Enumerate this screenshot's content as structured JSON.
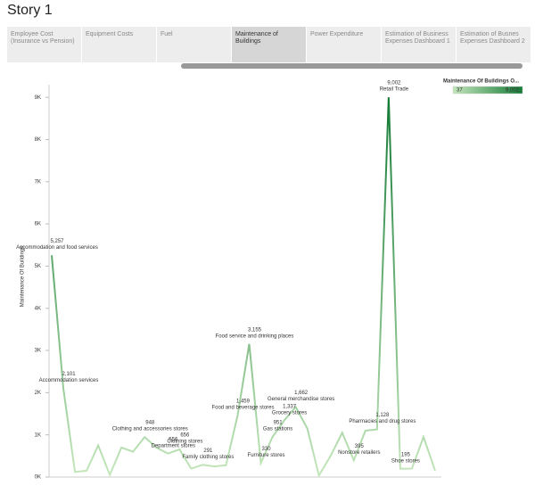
{
  "story_title": "Story 1",
  "tabs": [
    "Employee Cost (Insurance vs Pension)",
    "Equipment Costs",
    "Fuel",
    "Maintenance of Buildings",
    "Power Expenditure",
    "Estimation of Business Expenses Dashboard 1",
    "Estimation of Busnes Expenses Dashboard 2"
  ],
  "selected_tab": 3,
  "chart_data": {
    "type": "line",
    "y_label": "Maintenance Of Buildings",
    "categories": [
      "Accommodation and food services",
      "Accommodation services",
      null,
      null,
      null,
      null,
      null,
      null,
      "Clothing and accessories stores",
      null,
      "Department stores",
      "Clothing stores",
      null,
      "Family clothing stores",
      null,
      null,
      "Food and beverage stores",
      "Food service and drinking places",
      "Furniture stores",
      "Gas stations",
      "Grocery stores",
      "General merchandise stores",
      null,
      null,
      null,
      null,
      "Nonstore retailers",
      null,
      "Pharmacies and drug stores",
      "Retail Trade",
      "Shoe stores",
      null,
      null,
      null
    ],
    "values": [
      5257,
      2101,
      120,
      150,
      750,
      50,
      700,
      600,
      948,
      700,
      556,
      656,
      200,
      291,
      250,
      280,
      1459,
      3155,
      330,
      951,
      1337,
      1662,
      1150,
      37,
      500,
      1050,
      395,
      1100,
      1128,
      9002,
      195,
      200,
      950,
      150
    ],
    "value_labels": [
      "5,257",
      "2,101",
      null,
      null,
      null,
      null,
      null,
      null,
      "948",
      null,
      "556",
      "656",
      null,
      "291",
      null,
      null,
      "1,459",
      "3,155",
      "330",
      "951",
      "1,337",
      "1,662",
      null,
      null,
      null,
      null,
      "395",
      null,
      "1,128",
      "9,002",
      "195",
      null,
      null,
      null
    ],
    "ylim": [
      0,
      9300
    ],
    "yticks": [
      {
        "value": 0,
        "label": "0K"
      },
      {
        "value": 1000,
        "label": "1K"
      },
      {
        "value": 2000,
        "label": "2K"
      },
      {
        "value": 3000,
        "label": "3K"
      },
      {
        "value": 4000,
        "label": "4K"
      },
      {
        "value": 5000,
        "label": "5K"
      },
      {
        "value": 6000,
        "label": "6K"
      },
      {
        "value": 7000,
        "label": "7K"
      },
      {
        "value": 8000,
        "label": "8K"
      },
      {
        "value": 9000,
        "label": "9K"
      }
    ],
    "legend": {
      "title": "Maintenance Of Buildings O...",
      "min": 37,
      "max": 9002,
      "min_label": "37",
      "max_label": "9,002",
      "colors": [
        "#c4e6bb",
        "#137a35"
      ]
    }
  }
}
